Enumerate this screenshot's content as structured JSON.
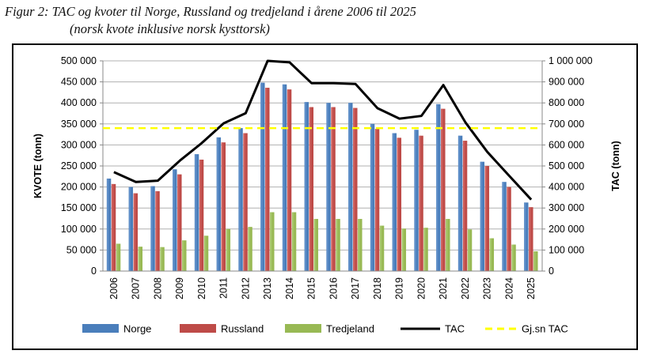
{
  "caption": {
    "line1": "Figur 2: TAC og kvoter til Norge, Russland og tredjeland i årene 2006 til 2025",
    "line2": "(norsk kvote inklusive norsk kysttorsk)"
  },
  "chart_data": {
    "type": "bar",
    "title": "Figur 2: TAC og kvoter til Norge, Russland og tredjeland i årene 2006 til 2025",
    "subtitle": "(norsk kvote inklusive norsk kysttorsk)",
    "categories": [
      "2006",
      "2007",
      "2008",
      "2009",
      "2010",
      "2011",
      "2012",
      "2013",
      "2014",
      "2015",
      "2016",
      "2017",
      "2018",
      "2019",
      "2020",
      "2021",
      "2022",
      "2023",
      "2024",
      "2025"
    ],
    "ylabel": "KVOTE (tonn)",
    "y2label": "TAC (tonn)",
    "ylim": [
      0,
      500000
    ],
    "y2lim": [
      0,
      1000000
    ],
    "yticks": [
      "0",
      "50 000",
      "100 000",
      "150 000",
      "200 000",
      "250 000",
      "300 000",
      "350 000",
      "400 000",
      "450 000",
      "500 000"
    ],
    "y2ticks": [
      "0",
      "100 000",
      "200 000",
      "300 000",
      "400 000",
      "500 000",
      "600 000",
      "700 000",
      "800 000",
      "900 000",
      "1 000 000"
    ],
    "series": [
      {
        "name": "Norge",
        "type": "bar",
        "axis": "left",
        "color": "#4a7ebb",
        "values": [
          220000,
          200000,
          202000,
          242000,
          278000,
          318000,
          340000,
          448000,
          444000,
          402000,
          400000,
          400000,
          350000,
          328000,
          336000,
          397000,
          322000,
          260000,
          212000,
          163000
        ]
      },
      {
        "name": "Russland",
        "type": "bar",
        "axis": "left",
        "color": "#be4b48",
        "values": [
          207000,
          185000,
          190000,
          230000,
          265000,
          306000,
          328000,
          436000,
          432000,
          390000,
          390000,
          388000,
          338000,
          317000,
          322000,
          386000,
          310000,
          250000,
          200000,
          152000
        ]
      },
      {
        "name": "Tredjeland",
        "type": "bar",
        "axis": "left",
        "color": "#98b954",
        "values": [
          65000,
          58000,
          57000,
          73000,
          84000,
          100000,
          105000,
          140000,
          140000,
          124000,
          124000,
          124000,
          108000,
          101000,
          103000,
          124000,
          99000,
          78000,
          63000,
          47000
        ]
      },
      {
        "name": "TAC",
        "type": "line",
        "axis": "right",
        "color": "#000000",
        "values": [
          471000,
          424000,
          430000,
          525000,
          609000,
          703000,
          751000,
          1000000,
          993000,
          894000,
          894000,
          890000,
          775000,
          725000,
          738000,
          885000,
          708000,
          567000,
          453000,
          340000
        ]
      },
      {
        "name": "Gj.sn TAC",
        "type": "line",
        "axis": "right",
        "style": "dashed",
        "color": "#ffff00",
        "values": [
          680000,
          680000,
          680000,
          680000,
          680000,
          680000,
          680000,
          680000,
          680000,
          680000,
          680000,
          680000,
          680000,
          680000,
          680000,
          680000,
          680000,
          680000,
          680000,
          680000
        ]
      }
    ],
    "grid": true,
    "legend": "bottom"
  }
}
